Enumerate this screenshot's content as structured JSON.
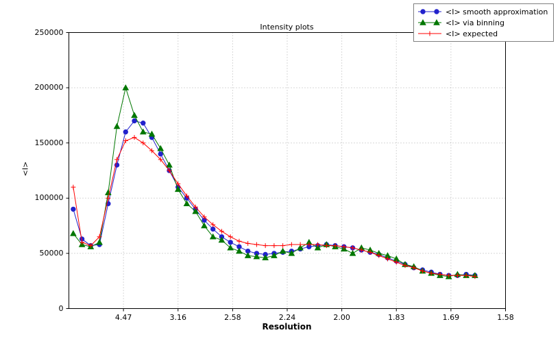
{
  "chart_data": {
    "type": "line",
    "title": "Intensity plots",
    "xlabel": "Resolution",
    "ylabel": "<I>",
    "grid": true,
    "legend_position": "upper right outside",
    "xlim": [
      0.0,
      0.4
    ],
    "ylim": [
      0,
      250000
    ],
    "x_axis_note": "x is 1/d^2; tick labels show resolution d in Angstrom",
    "x_ticks": [
      {
        "label": "4.47",
        "s": 0.05
      },
      {
        "label": "3.16",
        "s": 0.1
      },
      {
        "label": "2.58",
        "s": 0.15
      },
      {
        "label": "2.24",
        "s": 0.2
      },
      {
        "label": "2.00",
        "s": 0.25
      },
      {
        "label": "1.83",
        "s": 0.3
      },
      {
        "label": "1.69",
        "s": 0.35
      },
      {
        "label": "1.58",
        "s": 0.4
      }
    ],
    "y_ticks": [
      {
        "label": "0",
        "v": 0
      },
      {
        "label": "50000",
        "v": 50000
      },
      {
        "label": "100000",
        "v": 100000
      },
      {
        "label": "150000",
        "v": 150000
      },
      {
        "label": "200000",
        "v": 200000
      },
      {
        "label": "250000",
        "v": 250000
      }
    ],
    "x": [
      0.004,
      0.012,
      0.02,
      0.028,
      0.036,
      0.044,
      0.052,
      0.06,
      0.068,
      0.076,
      0.084,
      0.092,
      0.1,
      0.108,
      0.116,
      0.124,
      0.132,
      0.14,
      0.148,
      0.156,
      0.164,
      0.172,
      0.18,
      0.188,
      0.196,
      0.204,
      0.212,
      0.22,
      0.228,
      0.236,
      0.244,
      0.252,
      0.26,
      0.268,
      0.276,
      0.284,
      0.292,
      0.3,
      0.308,
      0.316,
      0.324,
      0.332,
      0.34,
      0.348,
      0.356,
      0.364,
      0.372
    ],
    "series": [
      {
        "name": "<I> smooth approximation",
        "color": "#2222cc",
        "marker": "circle",
        "values": [
          90000,
          63000,
          57000,
          58000,
          95000,
          130000,
          160000,
          170000,
          168000,
          155000,
          140000,
          125000,
          110000,
          100000,
          90000,
          80000,
          72000,
          65000,
          60000,
          56000,
          52000,
          50000,
          49000,
          50000,
          51000,
          52000,
          54000,
          56000,
          57000,
          58000,
          57000,
          56000,
          55000,
          53000,
          51000,
          49000,
          46000,
          43000,
          40000,
          37000,
          35000,
          33000,
          31000,
          30000,
          30000,
          31000,
          30000
        ]
      },
      {
        "name": "<I> via binning",
        "color": "#007700",
        "marker": "triangle",
        "values": [
          68000,
          58000,
          56000,
          60000,
          105000,
          165000,
          200000,
          175000,
          160000,
          158000,
          145000,
          130000,
          108000,
          95000,
          88000,
          75000,
          65000,
          62000,
          55000,
          52000,
          48000,
          47000,
          46000,
          48000,
          52000,
          50000,
          55000,
          60000,
          55000,
          58000,
          56000,
          54000,
          50000,
          55000,
          53000,
          50000,
          48000,
          45000,
          40000,
          38000,
          34000,
          32000,
          30000,
          29000,
          31000,
          30000,
          30000
        ]
      },
      {
        "name": "<I> expected",
        "color": "#ff0000",
        "marker": "plus",
        "values": [
          110000,
          60000,
          57000,
          65000,
          100000,
          135000,
          152000,
          155000,
          150000,
          143000,
          135000,
          125000,
          113000,
          102000,
          92000,
          83000,
          76000,
          70000,
          65000,
          61000,
          59000,
          58000,
          57000,
          57000,
          57000,
          58000,
          58000,
          58000,
          58000,
          57000,
          57000,
          56000,
          55000,
          53000,
          51000,
          48000,
          45000,
          42000,
          39000,
          37000,
          34000,
          32000,
          31000,
          30000,
          30000,
          30000,
          29000
        ]
      }
    ]
  }
}
